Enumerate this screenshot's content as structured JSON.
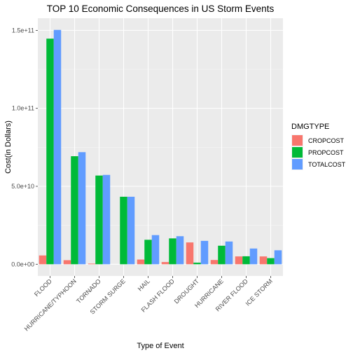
{
  "chart_data": {
    "type": "bar",
    "title": "TOP 10 Economic Consequences in US Storm Events",
    "xlabel": "Type of Event",
    "ylabel": "Cost(in Dollars)",
    "categories": [
      "FLOOD",
      "HURRICANE/TYPHOON",
      "TORNADO",
      "STORM SURGE",
      "HAIL",
      "FLASH FLOOD",
      "DROUGHT",
      "HURRICANE",
      "RIVER FLOOD",
      "ICE STORM"
    ],
    "series": [
      {
        "name": "CROPCOST",
        "color": "#F8766D",
        "values": [
          5660000000.0,
          2610000000.0,
          415000000.0,
          5000.0,
          3030000000.0,
          1420000000.0,
          14000000000.0,
          2740000000.0,
          5030000000.0,
          5020000000.0
        ]
      },
      {
        "name": "PROPCOST",
        "color": "#00BA38",
        "values": [
          144700000000.0,
          69300000000.0,
          56900000000.0,
          43300000000.0,
          15700000000.0,
          16600000000.0,
          1050000000.0,
          11900000000.0,
          5120000000.0,
          3940000000.0
        ]
      },
      {
        "name": "TOTALCOST",
        "color": "#619CFF",
        "values": [
          150300000000.0,
          71900000000.0,
          57300000000.0,
          43300000000.0,
          18700000000.0,
          18000000000.0,
          15000000000.0,
          14600000000.0,
          10100000000.0,
          8970000000.0
        ]
      }
    ],
    "yticks": [
      0,
      50000000000.0,
      100000000000.0,
      150000000000.0
    ],
    "ytick_labels": [
      "0.0e+00",
      "5.0e+10",
      "1.0e+11",
      "1.5e+11"
    ],
    "ylim": [
      -7500000000.0,
      157800000000.0
    ],
    "legend": {
      "title": "DMGTYPE",
      "position": "right"
    },
    "grid": true
  }
}
